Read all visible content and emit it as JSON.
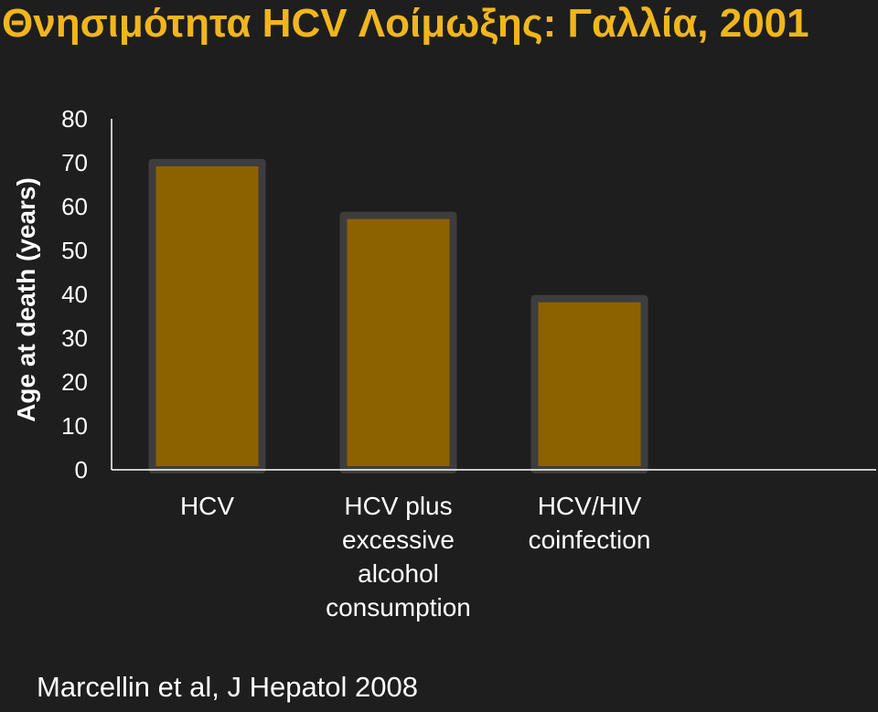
{
  "slide": {
    "title": "Θνησιμότητα HCV Λοίμωξης: Γαλλία, 2001",
    "citation": "Marcellin et al, J Hepatol 2008"
  },
  "colors": {
    "background": "#1e1e1e",
    "title": "#f0b61c",
    "bar_fill": "#8c6200",
    "bar_outline": "#3d3d3d",
    "axis": "#ffffff",
    "text": "#ffffff"
  },
  "chart_data": {
    "type": "bar",
    "ylabel": "Age at death (years)",
    "ylim": [
      0,
      80
    ],
    "yticks": [
      0,
      10,
      20,
      30,
      40,
      50,
      60,
      70,
      80
    ],
    "grid": false,
    "legend": "none",
    "categories": [
      [
        "HCV"
      ],
      [
        "HCV plus",
        "excessive",
        "alcohol",
        "consumption"
      ],
      [
        "HCV/HIV",
        "coinfection"
      ]
    ],
    "values": [
      70,
      58,
      39
    ]
  }
}
